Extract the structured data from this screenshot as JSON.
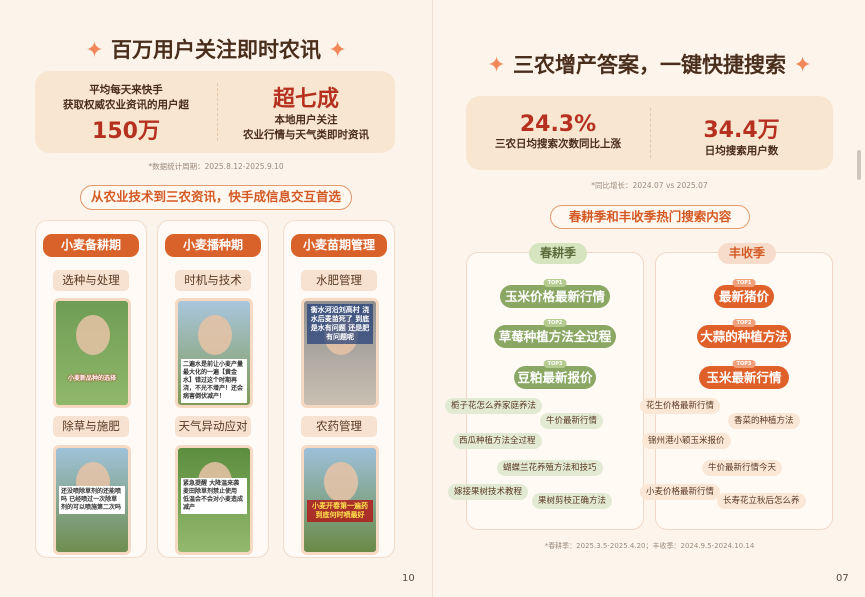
{
  "left": {
    "title": "百万用户关注即时农讯",
    "stat1": {
      "line1": "平均每天来快手",
      "line2": "获取权威农业资讯的用户超",
      "value": "150万"
    },
    "stat2": {
      "value": "超七成",
      "line1": "本地用户关注",
      "line2": "农业行情与天气类即时资讯"
    },
    "note": "*数据统计周期：2025.8.12-2025.9.10",
    "banner": "从农业技术到三农资讯，快手成信息交互首选",
    "columns": [
      {
        "head": "小麦备耕期",
        "items": [
          {
            "sub": "选种与处理",
            "caption": "小麦新品种的选择"
          },
          {
            "sub": "除草与施肥",
            "caption": "还没喷除草剂的还能喷吗 已经喷过一次除草剂的可以喷施第二次吗"
          }
        ]
      },
      {
        "head": "小麦播种期",
        "items": [
          {
            "sub": "时机与技术",
            "caption": "二遍水是前让小麦产量最大化的一遍【黄金水】错过这个时期再浇，不光不增产！还会病害倒伏减产！"
          },
          {
            "sub": "天气异动应对",
            "caption": "紧急提醒 大降温来袭 麦田除草剂禁止使用 低温会不会对小麦造成减产"
          }
        ]
      },
      {
        "head": "小麦苗期管理",
        "items": [
          {
            "sub": "水肥管理",
            "caption": "衡水河沿刘高村 浇水后麦苗死了 到底是水有问题 还是肥有问题呢"
          },
          {
            "sub": "农药管理",
            "caption": "小麦开春第一遍药 到底何时喷最好"
          }
        ]
      }
    ],
    "page_number": "10"
  },
  "right": {
    "title": "三农增产答案，一键快捷搜索",
    "stat1": {
      "value": "24.3%",
      "label": "三农日均搜索次数同比上涨"
    },
    "stat2": {
      "value": "34.4万",
      "label": "日均搜索用户数"
    },
    "note": "*同比增长：2024.07 vs 2025.07",
    "banner": "春耕季和丰收季热门搜索内容",
    "spring": {
      "head": "春耕季",
      "tops": [
        {
          "rank": "TOP1",
          "text": "玉米价格最新行情"
        },
        {
          "rank": "TOP2",
          "text": "草莓种植方法全过程"
        },
        {
          "rank": "TOP3",
          "text": "豆粕最新报价"
        }
      ],
      "tags": [
        "栀子花怎么养家庭养法",
        "牛价最新行情",
        "西瓜种植方法全过程",
        "蝴蝶兰花养殖方法和技巧",
        "嫁接果树技术教程",
        "果树剪枝正确方法"
      ]
    },
    "harvest": {
      "head": "丰收季",
      "tops": [
        {
          "rank": "TOP1",
          "text": "最新猪价"
        },
        {
          "rank": "TOP2",
          "text": "大蒜的种植方法"
        },
        {
          "rank": "TOP3",
          "text": "玉米最新行情"
        }
      ],
      "tags": [
        "花生价格最新行情",
        "香菜的种植方法",
        "锦州港小颖玉米报价",
        "牛价最新行情今天",
        "小麦价格最新行情",
        "长寿花立秋后怎么养"
      ]
    },
    "footnote": "*春耕季：2025.3.5-2025.4.20；丰收季：2024.9.5-2024.10.14",
    "page_number": "07"
  },
  "colors": {
    "accent": "#d9622b",
    "green": "#8aa864",
    "dark_red": "#b5301f"
  }
}
